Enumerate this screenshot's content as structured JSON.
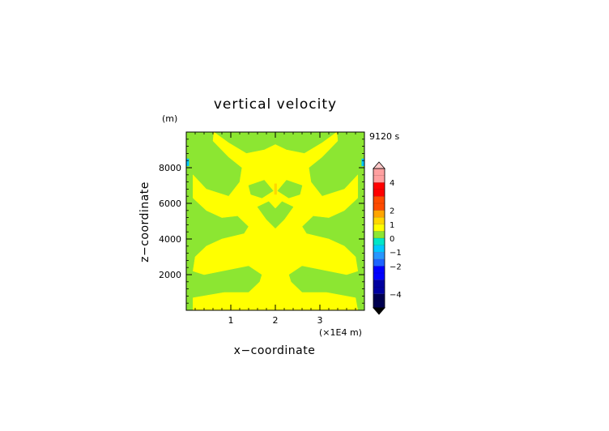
{
  "chart_data": {
    "type": "heatmap",
    "title": "vertical velocity",
    "time_label": "9120 s",
    "y_unit": "(m)",
    "x_multiplier": "(×1E4 m)",
    "xlabel": "x−coordinate",
    "ylabel": "z−coordinate",
    "xlim": [
      0,
      4.0
    ],
    "ylim": [
      0,
      10000
    ],
    "x_ticks": [
      1,
      2,
      3
    ],
    "x_tick_labels": [
      "1",
      "2",
      "3"
    ],
    "y_ticks": [
      2000,
      4000,
      6000,
      8000
    ],
    "y_tick_labels": [
      "2000",
      "4000",
      "6000",
      "8000"
    ],
    "grid": false,
    "colorbar": {
      "min": -5,
      "max": 5,
      "extend": "both",
      "tick_values": [
        4,
        2,
        1,
        0,
        -1,
        -2,
        -4
      ],
      "tick_labels": [
        "4",
        "2",
        "1",
        "0",
        "−1",
        "−2",
        "−4"
      ],
      "levels": [
        {
          "from": -5,
          "to": -4,
          "color": "#000050"
        },
        {
          "from": -4,
          "to": -3,
          "color": "#0000a0"
        },
        {
          "from": -3,
          "to": -2,
          "color": "#0000ff"
        },
        {
          "from": -2,
          "to": -1.5,
          "color": "#1e64ff"
        },
        {
          "from": -1.5,
          "to": -1,
          "color": "#2896ff"
        },
        {
          "from": -1,
          "to": -0.5,
          "color": "#00c8ff"
        },
        {
          "from": -0.5,
          "to": 0,
          "color": "#00e6c8"
        },
        {
          "from": 0,
          "to": 0.5,
          "color": "#8ce632"
        },
        {
          "from": 0.5,
          "to": 1,
          "color": "#ffff00"
        },
        {
          "from": 1,
          "to": 1.5,
          "color": "#ffd700"
        },
        {
          "from": 1.5,
          "to": 2,
          "color": "#ffa500"
        },
        {
          "from": 2,
          "to": 3,
          "color": "#ff4b00"
        },
        {
          "from": 3,
          "to": 4,
          "color": "#ff0000"
        },
        {
          "from": 4,
          "to": 5,
          "color": "#ffa0a0"
        }
      ],
      "over_color": "#ffc8c8",
      "under_color": "#000000"
    },
    "field": {
      "background_value": 0.25,
      "background_color": "#8ce632",
      "regions": [
        {
          "value": 0.75,
          "color": "#ffff00",
          "description": "central updraft body, lobes and lower band",
          "polygon": [
            [
              0.62,
              10000
            ],
            [
              0.95,
              9400
            ],
            [
              1.35,
              8800
            ],
            [
              1.75,
              9000
            ],
            [
              2.0,
              9300
            ],
            [
              2.25,
              9000
            ],
            [
              2.65,
              8800
            ],
            [
              3.05,
              9400
            ],
            [
              3.38,
              10000
            ],
            [
              3.4,
              9500
            ],
            [
              3.05,
              8600
            ],
            [
              2.75,
              8000
            ],
            [
              2.8,
              7200
            ],
            [
              3.05,
              6400
            ],
            [
              3.55,
              6800
            ],
            [
              3.85,
              7600
            ],
            [
              3.85,
              6300
            ],
            [
              3.55,
              5600
            ],
            [
              3.2,
              5200
            ],
            [
              2.85,
              5300
            ],
            [
              2.6,
              4700
            ],
            [
              2.7,
              4300
            ],
            [
              3.2,
              4000
            ],
            [
              3.55,
              3600
            ],
            [
              3.8,
              3000
            ],
            [
              3.85,
              2200
            ],
            [
              3.6,
              2000
            ],
            [
              3.0,
              2300
            ],
            [
              2.6,
              2500
            ],
            [
              2.3,
              2000
            ],
            [
              2.35,
              1600
            ],
            [
              2.6,
              1000
            ],
            [
              3.15,
              1000
            ],
            [
              3.8,
              700
            ],
            [
              3.85,
              0
            ],
            [
              0.15,
              0
            ],
            [
              0.15,
              700
            ],
            [
              0.85,
              1000
            ],
            [
              1.4,
              1000
            ],
            [
              1.65,
              1600
            ],
            [
              1.7,
              2000
            ],
            [
              1.4,
              2500
            ],
            [
              1.0,
              2300
            ],
            [
              0.4,
              2000
            ],
            [
              0.15,
              2200
            ],
            [
              0.2,
              3000
            ],
            [
              0.45,
              3600
            ],
            [
              0.8,
              4000
            ],
            [
              1.3,
              4300
            ],
            [
              1.4,
              4700
            ],
            [
              1.15,
              5300
            ],
            [
              0.8,
              5200
            ],
            [
              0.45,
              5600
            ],
            [
              0.15,
              6300
            ],
            [
              0.15,
              7600
            ],
            [
              0.45,
              6800
            ],
            [
              0.95,
              6400
            ],
            [
              1.2,
              7200
            ],
            [
              1.25,
              8000
            ],
            [
              0.95,
              8600
            ],
            [
              0.6,
              9500
            ]
          ]
        },
        {
          "value": 0.25,
          "color": "#8ce632",
          "description": "lower left green blob",
          "polygon": [
            [
              0.85,
              1500
            ],
            [
              1.05,
              1950
            ],
            [
              1.35,
              1900
            ],
            [
              1.55,
              1500
            ],
            [
              1.3,
              1050
            ],
            [
              0.95,
              1050
            ]
          ]
        },
        {
          "value": 0.25,
          "color": "#8ce632",
          "description": "lower right green blob",
          "polygon": [
            [
              2.45,
              1500
            ],
            [
              2.65,
              1950
            ],
            [
              2.95,
              1900
            ],
            [
              3.15,
              1500
            ],
            [
              2.95,
              1050
            ],
            [
              2.6,
              1050
            ]
          ]
        },
        {
          "value": 0.25,
          "color": "#8ce632",
          "description": "mid left green leaf",
          "polygon": [
            [
              1.4,
              7000
            ],
            [
              1.75,
              7300
            ],
            [
              1.95,
              6700
            ],
            [
              1.7,
              6300
            ],
            [
              1.45,
              6500
            ]
          ]
        },
        {
          "value": 0.25,
          "color": "#8ce632",
          "description": "mid right green leaf",
          "polygon": [
            [
              2.6,
              7000
            ],
            [
              2.25,
              7300
            ],
            [
              2.05,
              6700
            ],
            [
              2.3,
              6300
            ],
            [
              2.55,
              6500
            ]
          ]
        },
        {
          "value": 0.25,
          "color": "#8ce632",
          "description": "central stem lobe",
          "polygon": [
            [
              1.6,
              5800
            ],
            [
              1.85,
              6100
            ],
            [
              2.0,
              5700
            ],
            [
              2.15,
              6100
            ],
            [
              2.4,
              5800
            ],
            [
              2.2,
              5100
            ],
            [
              2.0,
              4600
            ],
            [
              1.8,
              5100
            ]
          ]
        },
        {
          "value": 1.25,
          "color": "#ffd700",
          "description": "small central max",
          "polygon": [
            [
              1.98,
              7100
            ],
            [
              2.03,
              7100
            ],
            [
              2.03,
              6500
            ],
            [
              1.98,
              6500
            ]
          ]
        },
        {
          "value": -0.75,
          "color": "#00c8ff",
          "description": "left edge downdraft",
          "polygon": [
            [
              0.0,
              8500
            ],
            [
              0.06,
              8500
            ],
            [
              0.06,
              8100
            ],
            [
              0.0,
              8100
            ]
          ]
        },
        {
          "value": -0.75,
          "color": "#00c8ff",
          "description": "right edge downdraft",
          "polygon": [
            [
              3.94,
              8500
            ],
            [
              4.0,
              8500
            ],
            [
              4.0,
              8100
            ],
            [
              3.94,
              8100
            ]
          ]
        }
      ]
    }
  }
}
